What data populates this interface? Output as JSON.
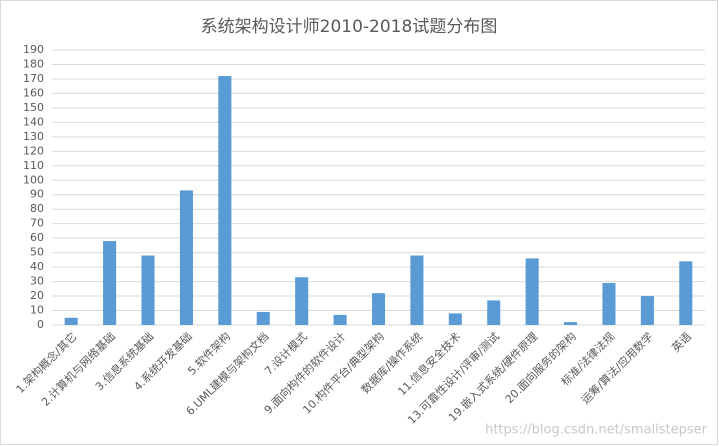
{
  "chart_data": {
    "type": "bar",
    "title": "系统架构设计师2010-2018试题分布图",
    "categories": [
      "1.架构概念/其它",
      "2.计算机与网络基础",
      "3.信息系统基础",
      "4.系统开发基础",
      "5.软件架构",
      "6.UML建模与架构文档",
      "7.设计模式",
      "9.面向构件的软件设计",
      "10.构件平台/典型架构",
      "数据库/操作系统",
      "11.信息安全技术",
      "13.可靠性设计/评审/测试",
      "19.嵌入式系统/硬件原理",
      "20.面向服务的架构",
      "标准/法律法规",
      "运筹/算法/应用数学",
      "英语"
    ],
    "values": [
      5,
      58,
      48,
      93,
      172,
      9,
      33,
      7,
      22,
      48,
      8,
      17,
      46,
      2,
      29,
      20,
      44
    ],
    "color": "#5b9bd5",
    "ylim": [
      0,
      190
    ],
    "yticks": [
      0,
      10,
      20,
      30,
      40,
      50,
      60,
      70,
      80,
      90,
      100,
      110,
      120,
      130,
      140,
      150,
      160,
      170,
      180,
      190
    ],
    "grid": true
  },
  "watermark": "https://blog.csdn.net/smallstepser"
}
